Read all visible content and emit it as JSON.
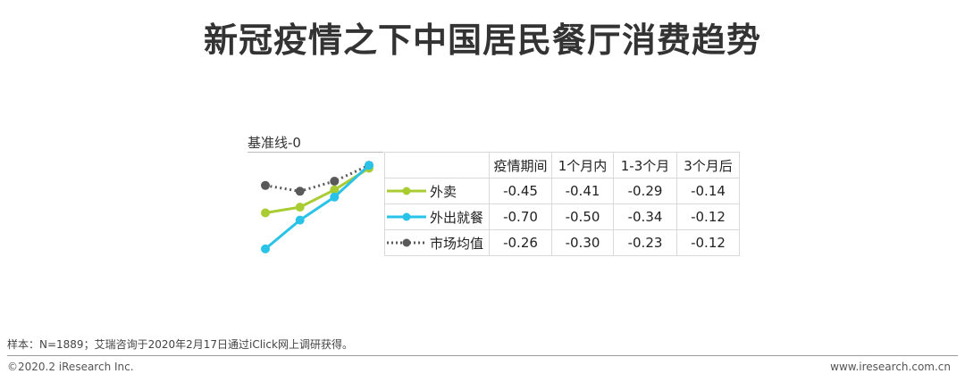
{
  "title": "新冠疫情之下中国居民餐厅消费趋势",
  "baseline_label": "基准线-0",
  "footnote": "样本：N=1889；艾瑞咨询于2020年2月17日通过iClick网上调研获得。",
  "copyright": "©2020.2 iResearch Inc.",
  "website": "www.iresearch.com.cn",
  "chart_data": {
    "type": "line",
    "categories": [
      "疫情期间",
      "1个月内",
      "1-3个月",
      "3个月后"
    ],
    "series": [
      {
        "name": "外卖",
        "values": [
          -0.45,
          -0.41,
          -0.29,
          -0.14
        ],
        "labels": [
          "-0.45",
          "-0.41",
          "-0.29",
          "-0.14"
        ],
        "color": "#a9cc33",
        "style": "solid"
      },
      {
        "name": "外出就餐",
        "values": [
          -0.7,
          -0.5,
          -0.34,
          -0.12
        ],
        "labels": [
          "-0.70",
          "-0.50",
          "-0.34",
          "-0.12"
        ],
        "color": "#29c2e8",
        "style": "solid"
      },
      {
        "name": "市场均值",
        "values": [
          -0.26,
          -0.3,
          -0.23,
          -0.12
        ],
        "labels": [
          "-0.26",
          "-0.30",
          "-0.23",
          "-0.12"
        ],
        "color": "#595959",
        "style": "dotted"
      }
    ],
    "ylim": [
      -0.75,
      -0.1
    ],
    "data_table": true,
    "grid": false,
    "axes_visible": false
  }
}
